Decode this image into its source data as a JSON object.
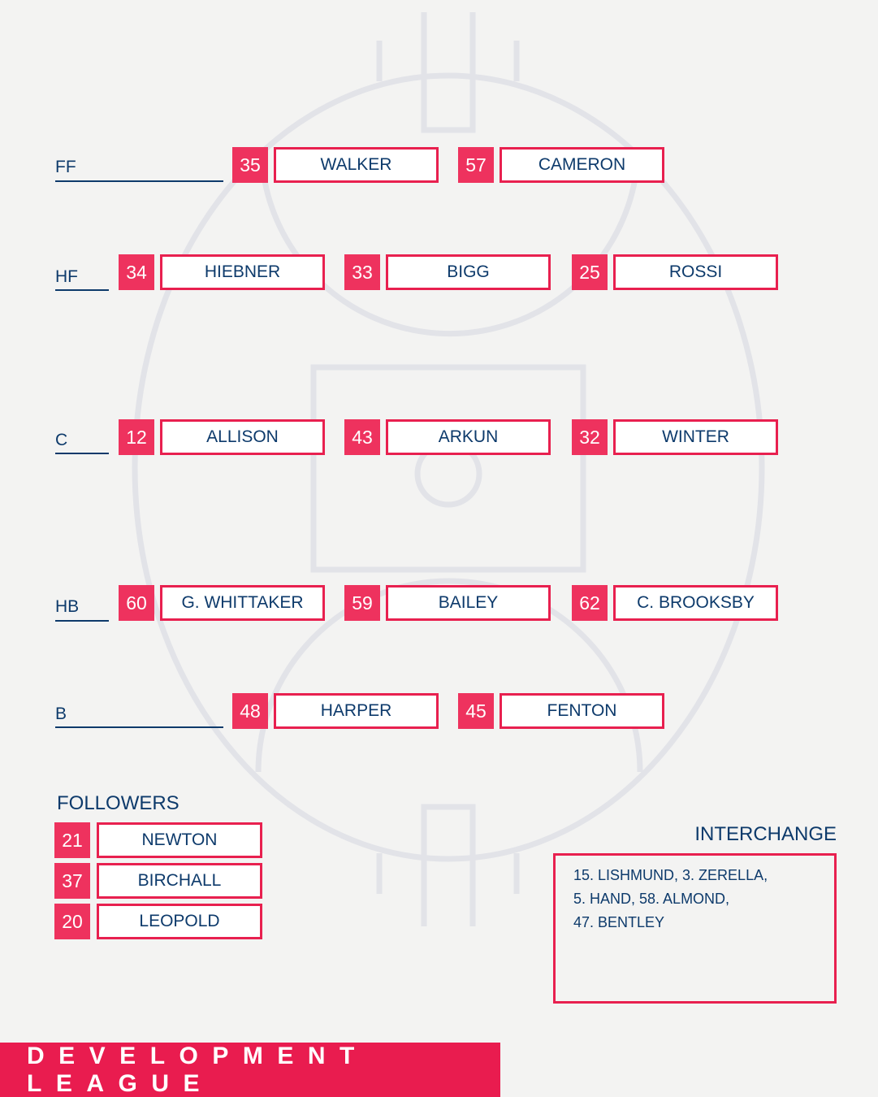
{
  "colors": {
    "accent": "#e91c4f",
    "number_bg": "#ee325e",
    "text": "#0d3a6b",
    "field_lines": "#e2e3e8",
    "background": "#f3f3f2"
  },
  "lines": [
    {
      "label": "FF",
      "players": [
        {
          "number": "35",
          "name": "WALKER"
        },
        {
          "number": "57",
          "name": "CAMERON"
        }
      ]
    },
    {
      "label": "HF",
      "players": [
        {
          "number": "34",
          "name": "HIEBNER"
        },
        {
          "number": "33",
          "name": "BIGG"
        },
        {
          "number": "25",
          "name": "ROSSI"
        }
      ]
    },
    {
      "label": "C",
      "players": [
        {
          "number": "12",
          "name": "ALLISON"
        },
        {
          "number": "43",
          "name": "ARKUN"
        },
        {
          "number": "32",
          "name": "WINTER"
        }
      ]
    },
    {
      "label": "HB",
      "players": [
        {
          "number": "60",
          "name": "G. WHITTAKER"
        },
        {
          "number": "59",
          "name": "BAILEY"
        },
        {
          "number": "62",
          "name": "C. BROOKSBY"
        }
      ]
    },
    {
      "label": "B",
      "players": [
        {
          "number": "48",
          "name": "HARPER"
        },
        {
          "number": "45",
          "name": "FENTON"
        }
      ]
    }
  ],
  "followers": {
    "title": "FOLLOWERS",
    "players": [
      {
        "number": "21",
        "name": "NEWTON"
      },
      {
        "number": "37",
        "name": "BIRCHALL"
      },
      {
        "number": "20",
        "name": "LEOPOLD"
      }
    ]
  },
  "interchange": {
    "title": "INTERCHANGE",
    "lines": [
      "15. LISHMUND, 3. ZERELLA,",
      "5. HAND, 58. ALMOND,",
      "47. BENTLEY"
    ]
  },
  "footer": {
    "text": "DEVELOPMENT LEAGUE"
  }
}
